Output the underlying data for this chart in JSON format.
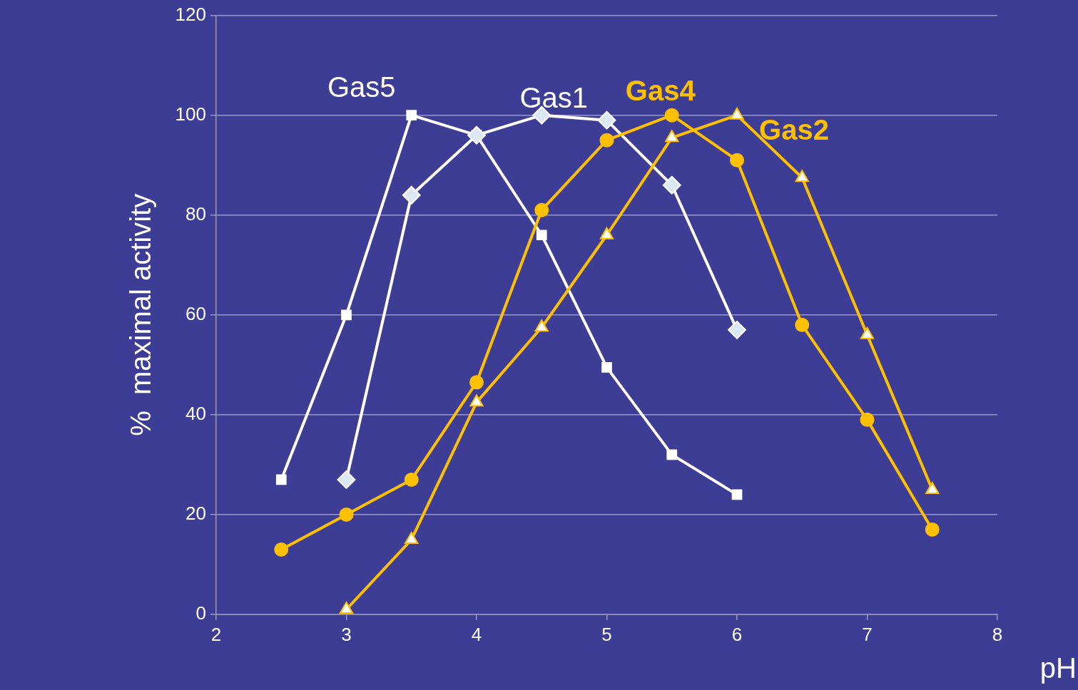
{
  "chart_data": {
    "type": "line",
    "xlabel": "pH",
    "ylabel": "%  maximal activity",
    "xlim": [
      2,
      8
    ],
    "xticks": [
      2,
      3,
      4,
      5,
      6,
      7,
      8
    ],
    "ylim": [
      0,
      120
    ],
    "yticks": [
      0,
      20,
      40,
      60,
      80,
      100,
      120
    ],
    "grid": "y",
    "legend": false,
    "series": [
      {
        "name": "Gas5",
        "color": "#ffffff",
        "marker": "square",
        "x": [
          2.5,
          3,
          3.5,
          4,
          4.5,
          5,
          5.5,
          6
        ],
        "values": [
          27,
          60,
          100,
          96,
          76,
          49.5,
          32,
          24
        ]
      },
      {
        "name": "Gas1",
        "color": "#ffffff",
        "marker": "diamond",
        "x": [
          3,
          3.5,
          4,
          4.5,
          5,
          5.5,
          6
        ],
        "values": [
          27,
          84,
          96,
          100,
          99,
          86,
          57
        ]
      },
      {
        "name": "Gas4",
        "color": "#ffc000",
        "marker": "circle",
        "x": [
          2.5,
          3,
          3.5,
          4,
          4.5,
          5,
          5.5,
          6,
          6.5,
          7,
          7.5
        ],
        "values": [
          13,
          20,
          27,
          46.5,
          81,
          95,
          100,
          91,
          58,
          39,
          17
        ]
      },
      {
        "name": "Gas2",
        "color": "#ffc000",
        "marker": "triangle",
        "x": [
          3,
          3.5,
          4,
          4.5,
          5,
          5.5,
          6,
          6.5,
          7,
          7.5
        ],
        "values": [
          1,
          15,
          42.5,
          57.5,
          76,
          95.5,
          100,
          87.5,
          56,
          25
        ]
      }
    ]
  }
}
